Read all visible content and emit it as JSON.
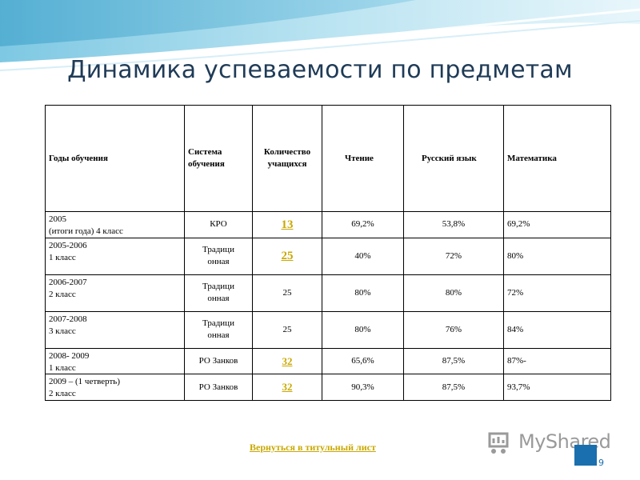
{
  "title": "Динамика успеваемости по предметам",
  "table": {
    "headers": [
      "Годы обучения",
      "Система обучения",
      "Количество учащихся",
      "Чтение",
      "Русский язык",
      "Математика"
    ],
    "rows": [
      {
        "years": "2005\n(итоги года) 4 класс",
        "system": "КРО",
        "count": "13",
        "reading": "69,2%",
        "russian": "53,8%",
        "math": "69,2%"
      },
      {
        "years": "2005-2006\n1 класс",
        "system": "Традици\nонная",
        "count": "25",
        "reading": "40%",
        "russian": "72%",
        "math": "80%"
      },
      {
        "years": "2006-2007\n2 класс",
        "system": "Традици\nонная",
        "count": "25",
        "reading": "80%",
        "russian": "80%",
        "math": "72%"
      },
      {
        "years": "2007-2008\n3 класс",
        "system": "Традици\nонная",
        "count": "25",
        "reading": "80%",
        "russian": "76%",
        "math": "84%"
      },
      {
        "years": "2008- 2009\n1 класс",
        "system": "РО Занков",
        "count": "32",
        "reading": "65,6%",
        "russian": "87,5%",
        "math": "87%-"
      },
      {
        "years": "2009 – (1 четверть)\n2 класс",
        "system": "РО Занков",
        "count": "32",
        "reading": "90,3%",
        "russian": "87,5%",
        "math": "93,7%"
      }
    ]
  },
  "footer": {
    "back_link": "Вернуться в титульный лист",
    "logo": "MyShared",
    "page_number": "9"
  },
  "colors": {
    "title": "#1f3b57",
    "link": "#c8a800",
    "accent": "#1a6fae"
  }
}
